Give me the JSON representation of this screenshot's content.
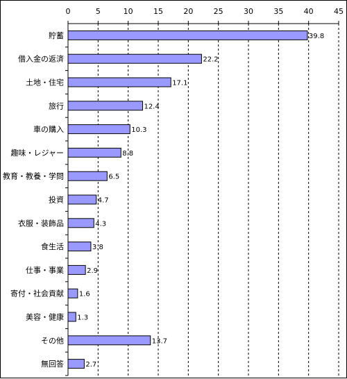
{
  "chart_data": {
    "type": "bar",
    "orientation": "horizontal",
    "title": "",
    "xlabel": "",
    "ylabel": "",
    "xlim": [
      0,
      45
    ],
    "x_ticks": [
      0,
      5,
      10,
      15,
      20,
      25,
      30,
      35,
      40,
      45
    ],
    "grid": "vertical dashed lines",
    "legend": "none",
    "categories": [
      "貯蓄",
      "借入金の返済",
      "土地・住宅",
      "旅行",
      "車の購入",
      "趣味・レジャー",
      "教育・教養・学問",
      "投資",
      "衣服・装飾品",
      "食生活",
      "仕事・事業",
      "寄付・社会貢献",
      "美容・健康",
      "その他",
      "無回答"
    ],
    "values": [
      39.8,
      22.2,
      17.1,
      12.4,
      10.3,
      8.8,
      6.5,
      4.7,
      4.3,
      3.8,
      2.9,
      1.6,
      1.3,
      13.7,
      2.7
    ],
    "value_labels": [
      "39.8",
      "22.2",
      "17.1",
      "12.4",
      "10.3",
      "8.8",
      "6.5",
      "4.7",
      "4.3",
      "3.8",
      "2.9",
      "1.6",
      "1.3",
      "13.7",
      "2.7"
    ],
    "colors": {
      "bar_fill": "#9999ff",
      "bar_stroke": "#000000",
      "axis": "#000000",
      "grid": "#000000",
      "background": "#ffffff"
    }
  }
}
